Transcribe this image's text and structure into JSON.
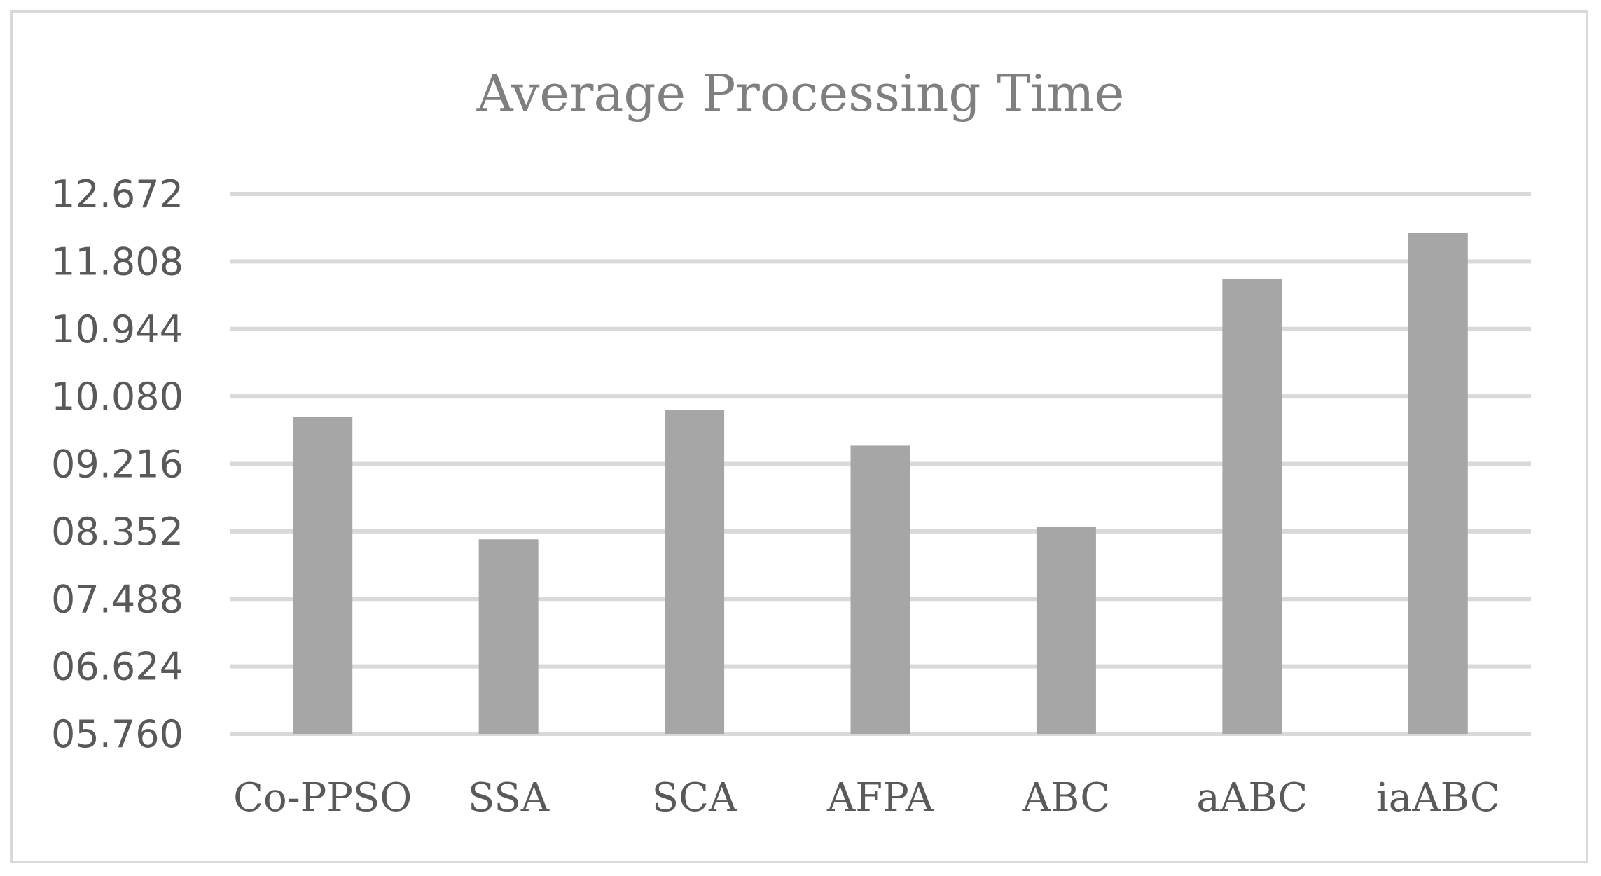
{
  "chart_data": {
    "type": "bar",
    "title": "Average Processing Time",
    "xlabel": "",
    "ylabel": "",
    "categories": [
      "Co-PPSO",
      "SSA",
      "SCA",
      "AFPA",
      "ABC",
      "aABC",
      "iaABC"
    ],
    "values": [
      9.82,
      8.25,
      9.91,
      9.45,
      8.41,
      11.58,
      12.17
    ],
    "ylim": [
      5.76,
      12.672
    ],
    "yticks": [
      "05.760",
      "06.624",
      "07.488",
      "08.352",
      "09.216",
      "10.080",
      "10.944",
      "11.808",
      "12.672"
    ],
    "ytick_values": [
      5.76,
      6.624,
      7.488,
      8.352,
      9.216,
      10.08,
      10.944,
      11.808,
      12.672
    ],
    "grid": true,
    "bar_color": "#a6a6a6",
    "grid_color": "#d9d9d9",
    "text_color": "#595959",
    "title_color": "#7f7f7f"
  }
}
